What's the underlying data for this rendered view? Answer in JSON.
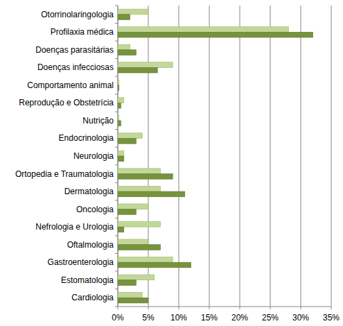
{
  "chart_data": {
    "type": "bar",
    "orientation": "horizontal",
    "grid": true,
    "categories": [
      "Otorrinolaringologia",
      "Profilaxia médica",
      "Doenças parasitárias",
      "Doenças infecciosas",
      "Comportamento animal",
      "Reprodução e Obstetrícia",
      "Nutrição",
      "Endocrinologia",
      "Neurologia",
      "Ortopedia e Traumatologia",
      "Dermatologia",
      "Oncologia",
      "Nefrologia e Urologia",
      "Oftalmologia",
      "Gastroenterologia",
      "Estomatologia",
      "Cardiologia"
    ],
    "series": [
      {
        "color": "#c3d69b",
        "values": [
          5,
          28,
          2,
          9,
          0.2,
          1,
          0.2,
          4,
          1,
          7,
          7,
          5,
          7,
          5,
          9,
          6,
          4
        ]
      },
      {
        "color": "#77933c",
        "values": [
          2,
          32,
          3,
          6.5,
          0.2,
          0.5,
          0.5,
          3,
          1,
          9,
          11,
          3,
          1,
          7,
          12,
          3,
          5
        ]
      }
    ],
    "xlim": [
      0,
      35
    ],
    "xticks": [
      {
        "value": 0,
        "label": "0%"
      },
      {
        "value": 5,
        "label": "5%"
      },
      {
        "value": 10,
        "label": "10%"
      },
      {
        "value": 15,
        "label": "15%"
      },
      {
        "value": 20,
        "label": "20%"
      },
      {
        "value": 25,
        "label": "25%"
      },
      {
        "value": 30,
        "label": "30%"
      },
      {
        "value": 35,
        "label": "35%"
      }
    ]
  }
}
